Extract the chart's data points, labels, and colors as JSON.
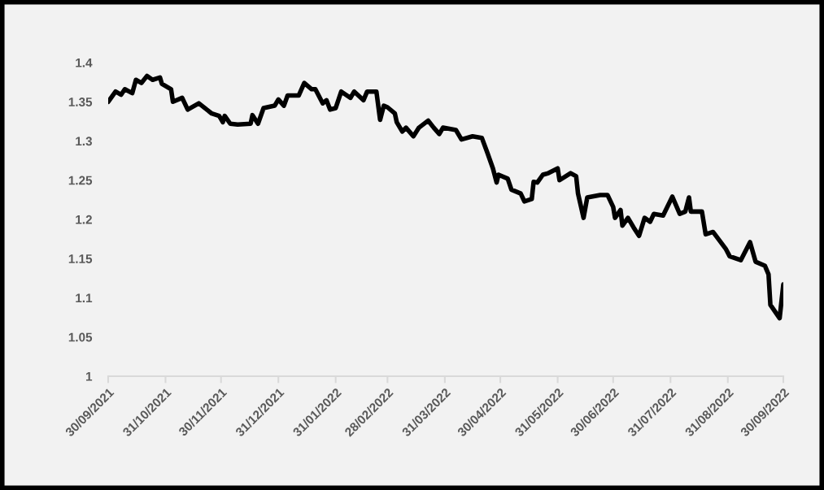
{
  "chart_data": {
    "type": "line",
    "color": "#000000",
    "grid": false,
    "x": [
      "2021-09-30",
      "2021-10-04",
      "2021-10-07",
      "2021-10-09",
      "2021-10-13",
      "2021-10-15",
      "2021-10-18",
      "2021-10-21",
      "2021-10-24",
      "2021-10-28",
      "2021-10-29",
      "2021-11-03",
      "2021-11-04",
      "2021-11-09",
      "2021-11-12",
      "2021-11-18",
      "2021-11-25",
      "2021-11-29",
      "2021-12-01",
      "2021-12-02",
      "2021-12-05",
      "2021-12-09",
      "2021-12-16",
      "2021-12-17",
      "2021-12-20",
      "2021-12-23",
      "2021-12-29",
      "2021-12-31",
      "2022-01-03",
      "2022-01-05",
      "2022-01-11",
      "2022-01-14",
      "2022-01-18",
      "2022-01-20",
      "2022-01-24",
      "2022-01-26",
      "2022-01-28",
      "2022-01-31",
      "2022-02-03",
      "2022-02-08",
      "2022-02-10",
      "2022-02-15",
      "2022-02-17",
      "2022-02-22",
      "2022-02-24",
      "2022-02-26",
      "2022-02-28",
      "2022-03-04",
      "2022-03-05",
      "2022-03-08",
      "2022-03-10",
      "2022-03-14",
      "2022-03-17",
      "2022-03-22",
      "2022-03-25",
      "2022-03-28",
      "2022-03-30",
      "2022-04-06",
      "2022-04-09",
      "2022-04-15",
      "2022-04-20",
      "2022-04-23",
      "2022-04-26",
      "2022-04-28",
      "2022-04-29",
      "2022-05-04",
      "2022-05-06",
      "2022-05-11",
      "2022-05-13",
      "2022-05-17",
      "2022-05-18",
      "2022-05-20",
      "2022-05-23",
      "2022-05-26",
      "2022-05-31",
      "2022-06-01",
      "2022-06-07",
      "2022-06-10",
      "2022-06-11",
      "2022-06-14",
      "2022-06-16",
      "2022-06-23",
      "2022-06-27",
      "2022-06-30",
      "2022-07-01",
      "2022-07-04",
      "2022-07-05",
      "2022-07-08",
      "2022-07-11",
      "2022-07-14",
      "2022-07-17",
      "2022-07-20",
      "2022-07-22",
      "2022-07-27",
      "2022-08-01",
      "2022-08-05",
      "2022-08-08",
      "2022-08-10",
      "2022-08-11",
      "2022-08-17",
      "2022-08-19",
      "2022-08-23",
      "2022-08-30",
      "2022-09-01",
      "2022-09-07",
      "2022-09-12",
      "2022-09-15",
      "2022-09-20",
      "2022-09-22",
      "2022-09-23",
      "2022-09-28",
      "2022-09-30"
    ],
    "values": [
      1.35,
      1.363,
      1.359,
      1.366,
      1.361,
      1.378,
      1.374,
      1.383,
      1.378,
      1.381,
      1.373,
      1.366,
      1.35,
      1.355,
      1.34,
      1.348,
      1.335,
      1.332,
      1.324,
      1.332,
      1.322,
      1.321,
      1.322,
      1.333,
      1.322,
      1.342,
      1.345,
      1.353,
      1.345,
      1.358,
      1.358,
      1.374,
      1.366,
      1.366,
      1.348,
      1.352,
      1.34,
      1.342,
      1.363,
      1.355,
      1.363,
      1.352,
      1.363,
      1.363,
      1.327,
      1.345,
      1.343,
      1.335,
      1.324,
      1.312,
      1.317,
      1.306,
      1.317,
      1.326,
      1.317,
      1.309,
      1.317,
      1.314,
      1.302,
      1.306,
      1.304,
      1.285,
      1.265,
      1.247,
      1.257,
      1.252,
      1.238,
      1.233,
      1.223,
      1.226,
      1.248,
      1.247,
      1.257,
      1.259,
      1.265,
      1.25,
      1.259,
      1.255,
      1.233,
      1.202,
      1.228,
      1.231,
      1.231,
      1.216,
      1.202,
      1.212,
      1.192,
      1.202,
      1.19,
      1.179,
      1.202,
      1.197,
      1.207,
      1.205,
      1.229,
      1.207,
      1.21,
      1.228,
      1.21,
      1.21,
      1.181,
      1.184,
      1.162,
      1.153,
      1.148,
      1.171,
      1.146,
      1.141,
      1.13,
      1.091,
      1.074,
      1.117
    ],
    "xlim": [
      "2021-09-30",
      "2022-09-30"
    ],
    "xticks": [
      {
        "value": "2021-09-30",
        "label": "30/09/2021"
      },
      {
        "value": "2021-10-31",
        "label": "31/10/2021"
      },
      {
        "value": "2021-11-30",
        "label": "30/11/2021"
      },
      {
        "value": "2021-12-31",
        "label": "31/12/2021"
      },
      {
        "value": "2022-01-31",
        "label": "31/01/2022"
      },
      {
        "value": "2022-02-28",
        "label": "28/02/2022"
      },
      {
        "value": "2022-03-31",
        "label": "31/03/2022"
      },
      {
        "value": "2022-04-30",
        "label": "30/04/2022"
      },
      {
        "value": "2022-05-31",
        "label": "31/05/2022"
      },
      {
        "value": "2022-06-30",
        "label": "30/06/2022"
      },
      {
        "value": "2022-07-31",
        "label": "31/07/2022"
      },
      {
        "value": "2022-08-31",
        "label": "31/08/2022"
      },
      {
        "value": "2022-09-30",
        "label": "30/09/2022"
      }
    ],
    "ylim": [
      1,
      1.4
    ],
    "yticks": [
      1,
      1.05,
      1.1,
      1.15,
      1.2,
      1.25,
      1.3,
      1.35,
      1.4
    ]
  }
}
